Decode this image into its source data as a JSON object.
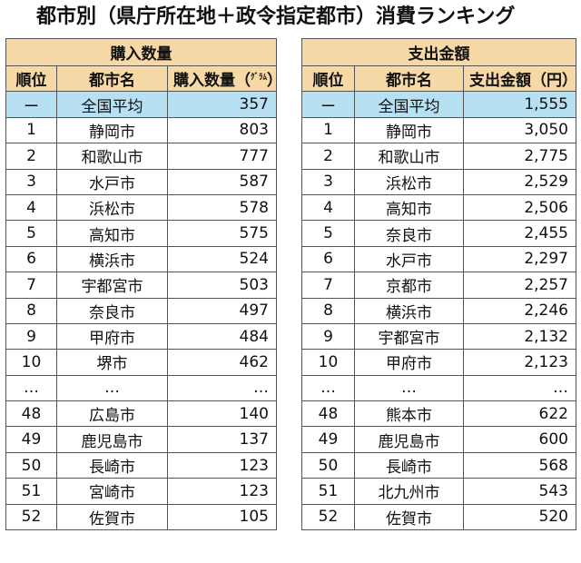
{
  "title": "都市別（県庁所在地＋政令指定都市）消費ランキング",
  "purchase_table": {
    "group_header": "購入数量",
    "columns": [
      "順位",
      "都市名",
      "購入数量（",
      "ｸﾞﾗﾑ",
      "）"
    ],
    "average": {
      "rank": "ー",
      "city": "全国平均",
      "value": "357"
    },
    "rows": [
      {
        "rank": "1",
        "city": "静岡市",
        "value": "803"
      },
      {
        "rank": "2",
        "city": "和歌山市",
        "value": "777"
      },
      {
        "rank": "3",
        "city": "水戸市",
        "value": "587"
      },
      {
        "rank": "4",
        "city": "浜松市",
        "value": "578"
      },
      {
        "rank": "5",
        "city": "高知市",
        "value": "575"
      },
      {
        "rank": "6",
        "city": "横浜市",
        "value": "524"
      },
      {
        "rank": "7",
        "city": "宇都宮市",
        "value": "503"
      },
      {
        "rank": "8",
        "city": "奈良市",
        "value": "497"
      },
      {
        "rank": "9",
        "city": "甲府市",
        "value": "484"
      },
      {
        "rank": "10",
        "city": "堺市",
        "value": "462"
      },
      {
        "rank": "…",
        "city": "…",
        "value": "…"
      },
      {
        "rank": "48",
        "city": "広島市",
        "value": "140"
      },
      {
        "rank": "49",
        "city": "鹿児島市",
        "value": "137"
      },
      {
        "rank": "50",
        "city": "長崎市",
        "value": "123"
      },
      {
        "rank": "51",
        "city": "宮崎市",
        "value": "123"
      },
      {
        "rank": "52",
        "city": "佐賀市",
        "value": "105"
      }
    ]
  },
  "spending_table": {
    "group_header": "支出金額",
    "columns": [
      "順位",
      "都市名",
      "支出金額（円）"
    ],
    "average": {
      "rank": "ー",
      "city": "全国平均",
      "value": "1,555"
    },
    "rows": [
      {
        "rank": "1",
        "city": "静岡市",
        "value": "3,050"
      },
      {
        "rank": "2",
        "city": "和歌山市",
        "value": "2,775"
      },
      {
        "rank": "3",
        "city": "浜松市",
        "value": "2,529"
      },
      {
        "rank": "4",
        "city": "高知市",
        "value": "2,506"
      },
      {
        "rank": "5",
        "city": "奈良市",
        "value": "2,455"
      },
      {
        "rank": "6",
        "city": "水戸市",
        "value": "2,297"
      },
      {
        "rank": "7",
        "city": "京都市",
        "value": "2,257"
      },
      {
        "rank": "8",
        "city": "横浜市",
        "value": "2,246"
      },
      {
        "rank": "9",
        "city": "宇都宮市",
        "value": "2,132"
      },
      {
        "rank": "10",
        "city": "甲府市",
        "value": "2,123"
      },
      {
        "rank": "…",
        "city": "…",
        "value": "…"
      },
      {
        "rank": "48",
        "city": "熊本市",
        "value": "622"
      },
      {
        "rank": "49",
        "city": "鹿児島市",
        "value": "600"
      },
      {
        "rank": "50",
        "city": "長崎市",
        "value": "568"
      },
      {
        "rank": "51",
        "city": "北九州市",
        "value": "543"
      },
      {
        "rank": "52",
        "city": "佐賀市",
        "value": "520"
      }
    ]
  },
  "colors": {
    "header_bg": "#f6d9a6",
    "average_bg": "#b7e0f2"
  }
}
